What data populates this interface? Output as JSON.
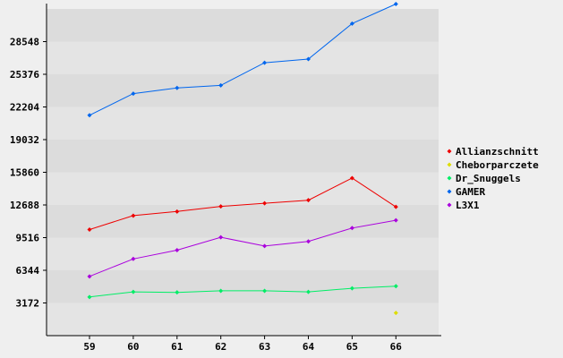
{
  "chart_data": {
    "type": "line",
    "x": [
      59,
      60,
      61,
      62,
      63,
      64,
      65,
      66
    ],
    "y_ticks": [
      3172,
      6344,
      9516,
      12688,
      15860,
      19032,
      22204,
      25376,
      28548
    ],
    "ylim": [
      0,
      31720
    ],
    "grid": true,
    "legend_position": "right",
    "series": [
      {
        "name": "Allianzschnitt",
        "color": "#ee0000",
        "values": [
          10300,
          11650,
          12050,
          12550,
          12850,
          13150,
          15300,
          12500
        ]
      },
      {
        "name": "Cheborparczete",
        "color": "#dddd00",
        "values": [
          null,
          null,
          null,
          null,
          null,
          null,
          null,
          2200
        ]
      },
      {
        "name": "Dr_Snuggels",
        "color": "#00ee66",
        "values": [
          3750,
          4250,
          4200,
          4350,
          4350,
          4250,
          4600,
          4800
        ]
      },
      {
        "name": "GAMER",
        "color": "#0066ee",
        "values": [
          21400,
          23500,
          24050,
          24300,
          26500,
          26850,
          30300,
          32200
        ]
      },
      {
        "name": "L3X1",
        "color": "#aa00dd",
        "values": [
          5750,
          7450,
          8300,
          9550,
          8700,
          9150,
          10450,
          11200
        ]
      }
    ],
    "title": "",
    "xlabel": "",
    "ylabel": ""
  }
}
